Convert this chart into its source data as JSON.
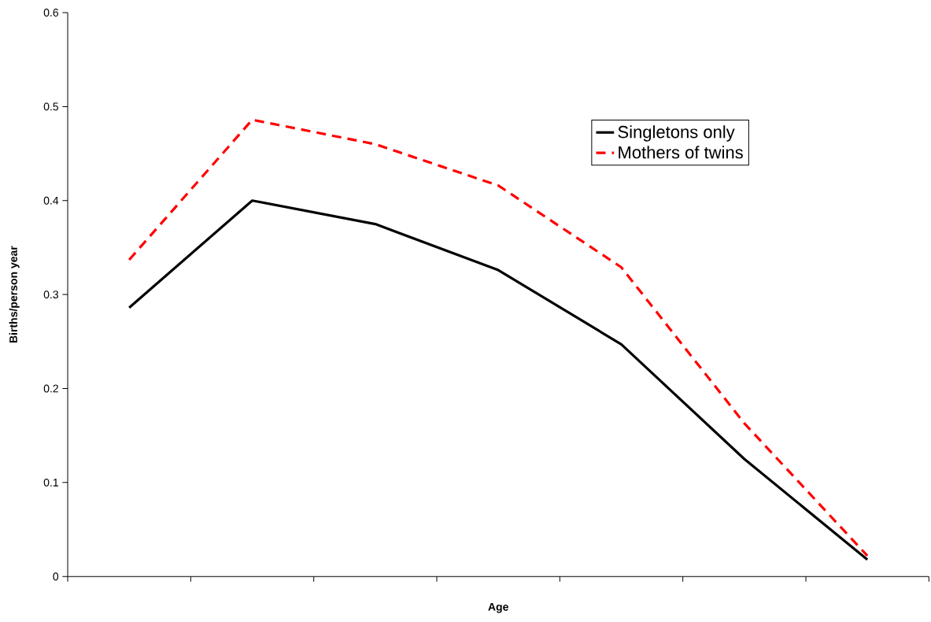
{
  "chart_data": {
    "type": "line",
    "xlabel": "Age",
    "ylabel": "Births/person year",
    "categories": [
      null,
      null,
      null,
      null,
      null,
      null,
      null
    ],
    "series": [
      {
        "name": "Singletons only",
        "color": "#000000",
        "line_style": "solid",
        "values": [
          0.286,
          0.4,
          0.375,
          0.326,
          0.247,
          0.125,
          0.018
        ]
      },
      {
        "name": "Mothers of twins",
        "color": "#ff0000",
        "line_style": "dashed",
        "values": [
          0.337,
          0.486,
          0.46,
          0.416,
          0.329,
          0.163,
          0.022
        ]
      }
    ],
    "ylim": [
      0,
      0.6
    ],
    "yticks": [
      0,
      0.1,
      0.2,
      0.3,
      0.4,
      0.5,
      0.6
    ],
    "grid": false,
    "legend": "top right",
    "marker": "none"
  }
}
